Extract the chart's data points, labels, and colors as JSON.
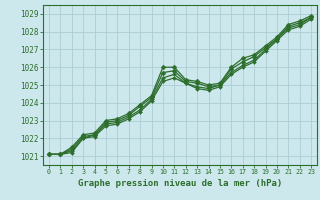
{
  "xlabel": "Graphe pression niveau de la mer (hPa)",
  "background_color": "#cde8ec",
  "grid_color": "#aacdd4",
  "line_color": "#2d6e2d",
  "xlim": [
    -0.5,
    23.5
  ],
  "ylim": [
    1020.5,
    1029.5
  ],
  "yticks": [
    1021,
    1022,
    1023,
    1024,
    1025,
    1026,
    1027,
    1028,
    1029
  ],
  "xticks": [
    0,
    1,
    2,
    3,
    4,
    5,
    6,
    7,
    8,
    9,
    10,
    11,
    12,
    13,
    14,
    15,
    16,
    17,
    18,
    19,
    20,
    21,
    22,
    23
  ],
  "series": [
    {
      "x": [
        0,
        1,
        2,
        3,
        4,
        5,
        6,
        7,
        8,
        9,
        10,
        11,
        12,
        13,
        14,
        15,
        16,
        17,
        18,
        19,
        20,
        21,
        22,
        23
      ],
      "y": [
        1021.1,
        1021.1,
        1021.4,
        1022.1,
        1022.2,
        1022.9,
        1023.0,
        1023.3,
        1023.8,
        1024.3,
        1025.7,
        1025.8,
        1025.2,
        1025.1,
        1024.9,
        1025.0,
        1025.9,
        1026.3,
        1026.6,
        1027.1,
        1027.6,
        1028.3,
        1028.5,
        1028.8
      ],
      "lw": 0.9,
      "marker": "D",
      "markersize": 2.5
    },
    {
      "x": [
        0,
        1,
        2,
        3,
        4,
        5,
        6,
        7,
        8,
        9,
        10,
        11,
        12,
        13,
        14,
        15,
        16,
        17,
        18,
        19,
        20,
        21,
        22,
        23
      ],
      "y": [
        1021.1,
        1021.1,
        1021.2,
        1022.0,
        1022.1,
        1022.7,
        1022.8,
        1023.1,
        1023.5,
        1024.1,
        1025.2,
        1025.4,
        1025.1,
        1024.8,
        1024.7,
        1024.9,
        1025.6,
        1026.0,
        1026.3,
        1026.9,
        1027.5,
        1028.1,
        1028.3,
        1028.7
      ],
      "lw": 0.9,
      "marker": "D",
      "markersize": 2.0
    },
    {
      "x": [
        0,
        1,
        2,
        3,
        4,
        5,
        6,
        7,
        8,
        9,
        10,
        11,
        12,
        13,
        14,
        15,
        16,
        17,
        18,
        19,
        20,
        21,
        22,
        23
      ],
      "y": [
        1021.1,
        1021.1,
        1021.3,
        1022.0,
        1022.2,
        1022.8,
        1022.9,
        1023.2,
        1023.6,
        1024.2,
        1025.4,
        1025.6,
        1025.1,
        1024.9,
        1024.8,
        1025.0,
        1025.7,
        1026.1,
        1026.4,
        1027.0,
        1027.6,
        1028.2,
        1028.4,
        1028.8
      ],
      "lw": 0.9,
      "marker": "D",
      "markersize": 2.0
    },
    {
      "x": [
        0,
        1,
        2,
        3,
        4,
        5,
        6,
        7,
        8,
        9,
        10,
        11,
        12,
        13,
        14,
        15,
        16,
        17,
        18,
        19,
        20,
        21,
        22,
        23
      ],
      "y": [
        1021.1,
        1021.1,
        1021.5,
        1022.2,
        1022.3,
        1023.0,
        1023.1,
        1023.4,
        1023.9,
        1024.4,
        1026.0,
        1026.0,
        1025.3,
        1025.2,
        1025.0,
        1025.1,
        1026.0,
        1026.5,
        1026.7,
        1027.2,
        1027.7,
        1028.4,
        1028.6,
        1028.9
      ],
      "lw": 0.9,
      "marker": "D",
      "markersize": 2.5
    }
  ]
}
